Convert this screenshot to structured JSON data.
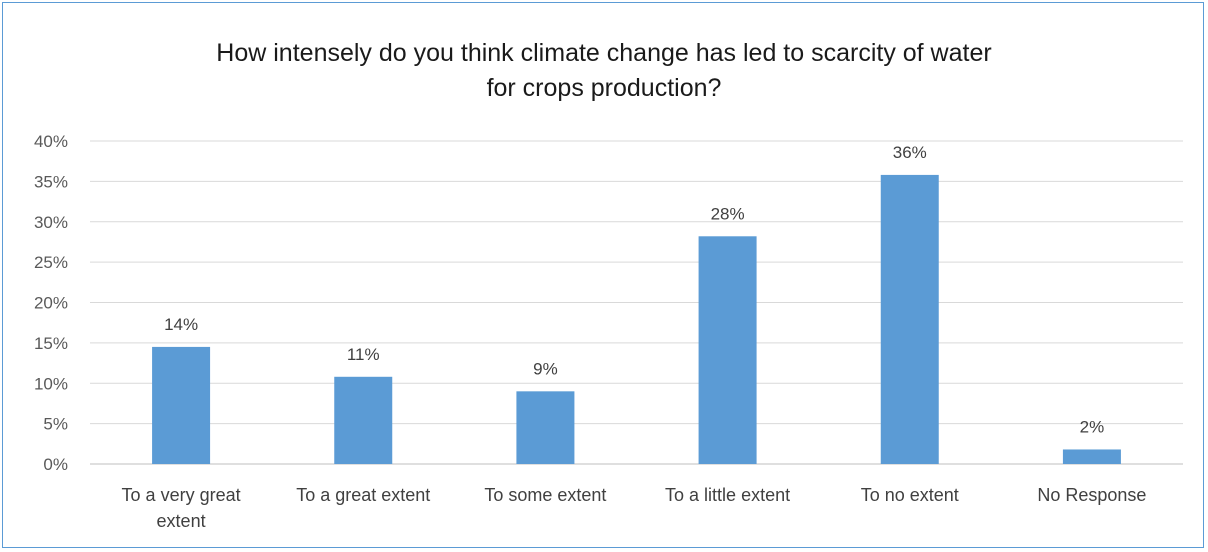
{
  "chart_data": {
    "type": "bar",
    "title_lines": [
      "How intensely do you think climate change has led to scarcity of water",
      "for crops production?"
    ],
    "categories": [
      [
        "To a very great",
        "extent"
      ],
      [
        "To a great extent"
      ],
      [
        "To some extent"
      ],
      [
        "To a little extent"
      ],
      [
        "To no extent"
      ],
      [
        "No Response"
      ]
    ],
    "values": [
      14.5,
      10.8,
      9.0,
      28.2,
      35.8,
      1.8
    ],
    "data_labels": [
      "14%",
      "11%",
      "9%",
      "28%",
      "36%",
      "2%"
    ],
    "ylim": [
      0,
      40
    ],
    "yticks": [
      0,
      5,
      10,
      15,
      20,
      25,
      30,
      35,
      40
    ],
    "ytick_labels": [
      "0%",
      "5%",
      "10%",
      "15%",
      "20%",
      "25%",
      "30%",
      "35%",
      "40%"
    ],
    "grid": true,
    "legend": "none",
    "bar_color": "#5b9bd5",
    "grid_color": "#d9d9d9"
  }
}
